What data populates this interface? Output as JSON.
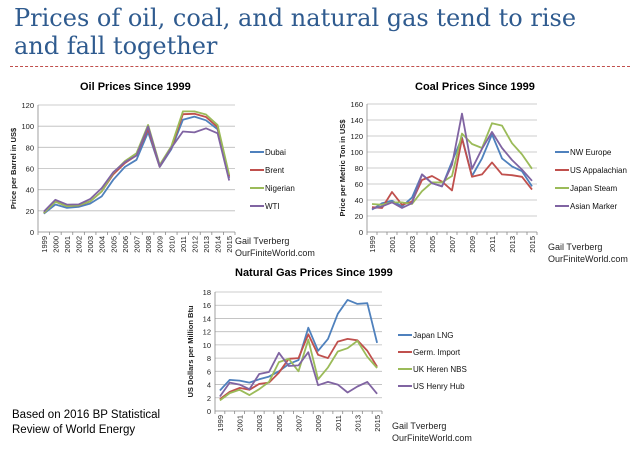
{
  "slide": {
    "title": "Prices of oil, coal, and natural gas tend to rise and fall together",
    "note_line1": "Based on 2016 BP Statistical",
    "note_line2": "Review of World Energy",
    "accent_color": "#2f5b8f",
    "separator_color": "#c0504d"
  },
  "chart_data": [
    {
      "type": "line",
      "title": "Oil Prices Since 1999",
      "ylabel": "Price per Barrel in US$",
      "xlabel": "",
      "ylim": [
        0,
        120
      ],
      "yticks": [
        0,
        20,
        40,
        60,
        80,
        100,
        120
      ],
      "x": [
        1999,
        2000,
        2001,
        2002,
        2003,
        2004,
        2005,
        2006,
        2007,
        2008,
        2009,
        2010,
        2011,
        2012,
        2013,
        2014,
        2015
      ],
      "xtick_labels": [
        "1999",
        "2000",
        "2001",
        "2002",
        "2003",
        "2004",
        "2005",
        "2006",
        "2007",
        "2008",
        "2009",
        "2010",
        "2011",
        "2012",
        "2013",
        "2014",
        "2015"
      ],
      "grid": true,
      "legend": "right",
      "source_line1": "Gail Tverberg",
      "source_line2": "OurFiniteWorld.com",
      "series": [
        {
          "name": "Dubai",
          "color": "#4f81bd",
          "values": [
            17.3,
            26,
            22.8,
            23.7,
            26.8,
            33.6,
            49.4,
            61.5,
            68.2,
            94.3,
            61.4,
            78.1,
            106,
            109,
            105.5,
            97,
            51
          ]
        },
        {
          "name": "Brent",
          "color": "#c0504d",
          "values": [
            17.9,
            28.7,
            24.5,
            25,
            28.8,
            38.3,
            54.5,
            65.1,
            72.4,
            97.3,
            61.7,
            79.5,
            111.3,
            111.7,
            108.7,
            99,
            52.4
          ]
        },
        {
          "name": "Nigerian",
          "color": "#9bbb59",
          "values": [
            18,
            28.5,
            24.5,
            25.2,
            28.9,
            38.3,
            56,
            67,
            74.5,
            101.2,
            63.4,
            81,
            114,
            114,
            111,
            101,
            54
          ]
        },
        {
          "name": "WTI",
          "color": "#8064a2",
          "values": [
            19.3,
            30.4,
            25.9,
            26.1,
            31.1,
            41.4,
            56.5,
            66,
            72.3,
            99.7,
            61.9,
            79.5,
            95,
            94.1,
            98,
            93.3,
            48.7
          ]
        }
      ]
    },
    {
      "type": "line",
      "title": "Coal Prices Since 1999",
      "ylabel": "Price per Metric Ton in US$",
      "xlabel": "",
      "ylim": [
        0,
        160
      ],
      "yticks": [
        0,
        20,
        40,
        60,
        80,
        100,
        120,
        140,
        160
      ],
      "x": [
        1999,
        2000,
        2001,
        2002,
        2003,
        2004,
        2005,
        2006,
        2007,
        2008,
        2009,
        2010,
        2011,
        2012,
        2013,
        2014,
        2015
      ],
      "xtick_labels": [
        "1999",
        "",
        "2001",
        "",
        "2003",
        "",
        "2005",
        "",
        "2007",
        "",
        "2009",
        "",
        "2011",
        "",
        "2013",
        "",
        "2015"
      ],
      "grid": true,
      "legend": "right",
      "source_line1": "Gail Tverberg",
      "source_line2": "OurFiniteWorld.com",
      "series": [
        {
          "name": "NW Europe",
          "color": "#4f81bd",
          "values": [
            28,
            36,
            39,
            32,
            43,
            72,
            61,
            57,
            88,
            118,
            70,
            92,
            122,
            92,
            82,
            76,
            57
          ]
        },
        {
          "name": "US Appalachian",
          "color": "#c0504d",
          "values": [
            31,
            30,
            50,
            34,
            38,
            65,
            70,
            63,
            52,
            117,
            69,
            72,
            87,
            72,
            71,
            69,
            53
          ]
        },
        {
          "name": "Japan Steam",
          "color": "#9bbb59",
          "values": [
            35,
            34,
            37,
            37,
            35,
            51,
            62,
            62,
            70,
            123,
            110,
            105,
            136,
            133,
            111,
            97,
            79
          ]
        },
        {
          "name": "Asian Marker",
          "color": "#8064a2",
          "values": [
            29,
            32,
            37,
            30,
            36,
            72,
            61,
            57,
            84,
            148,
            79,
            104,
            125,
            105,
            90,
            78,
            64
          ]
        }
      ]
    },
    {
      "type": "line",
      "title": "Natural Gas Prices Since 1999",
      "ylabel": "US Dollars per Million Btu",
      "xlabel": "",
      "ylim": [
        0,
        18
      ],
      "yticks": [
        0,
        2,
        4,
        6,
        8,
        10,
        12,
        14,
        16,
        18
      ],
      "x": [
        1999,
        2000,
        2001,
        2002,
        2003,
        2004,
        2005,
        2006,
        2007,
        2008,
        2009,
        2010,
        2011,
        2012,
        2013,
        2014,
        2015
      ],
      "xtick_labels": [
        "1999",
        "",
        "2001",
        "",
        "2003",
        "",
        "2005",
        "",
        "2007",
        "",
        "2009",
        "",
        "2011",
        "",
        "2013",
        "",
        "2015"
      ],
      "grid": true,
      "legend": "right",
      "source_line1": "Gail Tverberg",
      "source_line2": "OurFiniteWorld.com",
      "series": [
        {
          "name": "Japan LNG",
          "color": "#4f81bd",
          "values": [
            3.1,
            4.7,
            4.6,
            4.3,
            4.8,
            5.2,
            6.0,
            7.1,
            7.7,
            12.6,
            9.1,
            10.9,
            14.7,
            16.8,
            16.2,
            16.3,
            10.3
          ]
        },
        {
          "name": "Germ. Import",
          "color": "#c0504d",
          "values": [
            1.8,
            2.9,
            3.5,
            3.2,
            4.1,
            4.3,
            5.8,
            7.9,
            8.0,
            11.6,
            8.5,
            8.0,
            10.5,
            10.9,
            10.7,
            9.1,
            6.7
          ]
        },
        {
          "name": "UK Heren NBS",
          "color": "#9bbb59",
          "values": [
            1.6,
            2.7,
            3.2,
            2.4,
            3.3,
            4.4,
            7.4,
            7.9,
            6.0,
            10.8,
            4.8,
            6.6,
            9.0,
            9.5,
            10.6,
            8.2,
            6.5
          ]
        },
        {
          "name": "US Henry Hub",
          "color": "#8064a2",
          "values": [
            2.2,
            4.3,
            4.0,
            3.3,
            5.6,
            5.9,
            8.8,
            6.8,
            6.9,
            8.9,
            3.9,
            4.4,
            4.0,
            2.8,
            3.7,
            4.4,
            2.6
          ]
        }
      ]
    }
  ]
}
